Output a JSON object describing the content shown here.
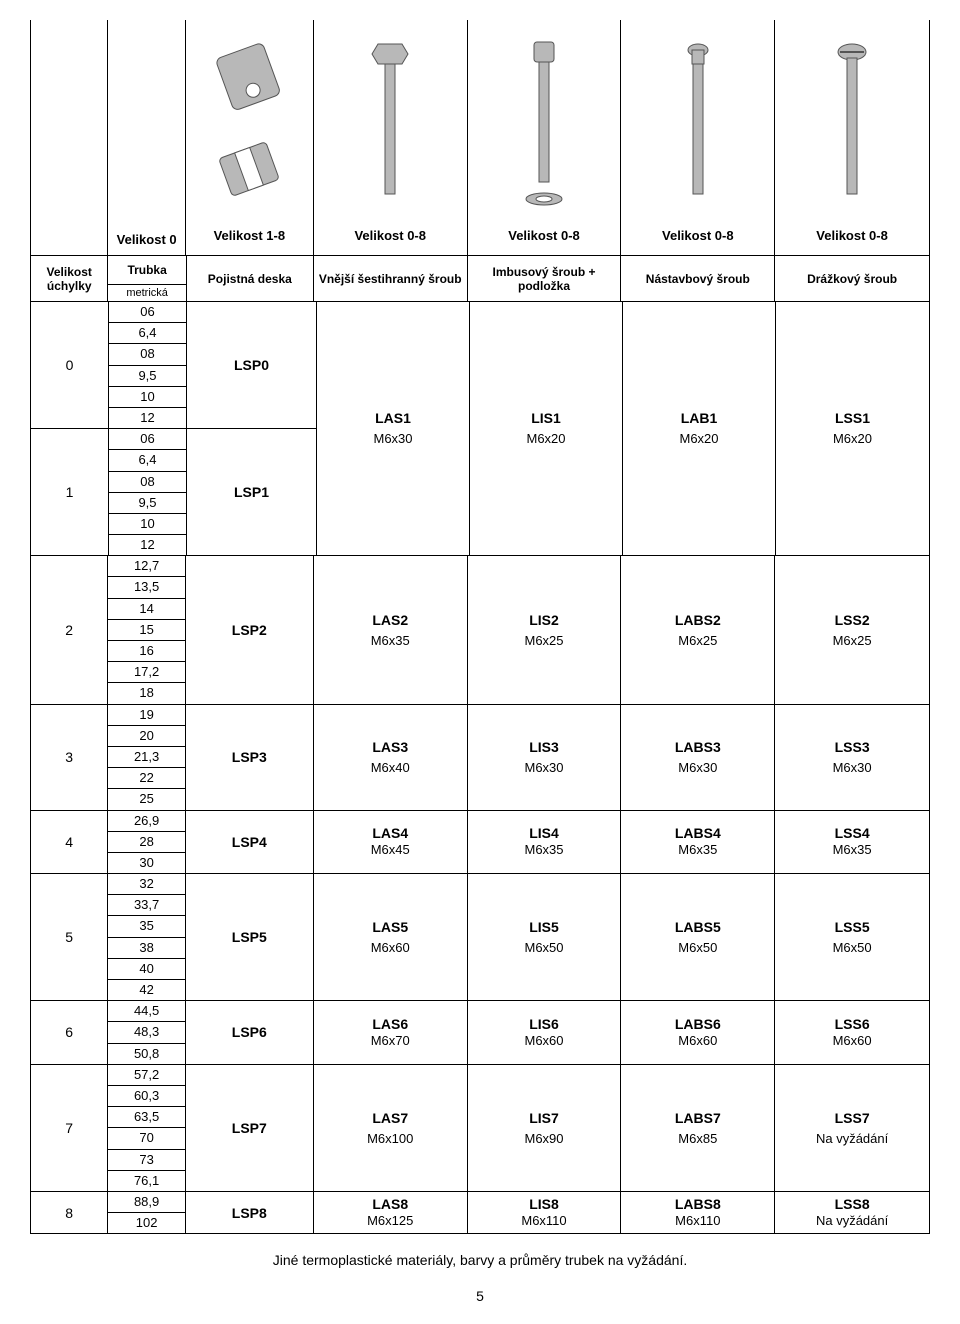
{
  "top_labels": {
    "side": "Velikost 0",
    "cols": [
      "Velikost 1-8",
      "Velikost 0-8",
      "Velikost 0-8",
      "Velikost 0-8",
      "Velikost 0-8"
    ]
  },
  "headers": {
    "uchylky": "Velikost úchylky",
    "trubka": "Trubka",
    "trubka_sub": "metrická",
    "deska": "Pojistná deska",
    "hex": "Vnější šestihranný šroub",
    "imbus": "Imbusový šroub + podložka",
    "stud": "Nástavbový šroub",
    "slot": "Drážkový šroub"
  },
  "groups": [
    {
      "span": true,
      "sub": [
        {
          "size": "0",
          "tubes": [
            "06",
            "6,4",
            "08",
            "9,5",
            "10",
            "12"
          ],
          "plate": "LSP0"
        },
        {
          "size": "1",
          "tubes": [
            "06",
            "6,4",
            "08",
            "9,5",
            "10",
            "12"
          ],
          "plate": "LSP1"
        }
      ],
      "screws": [
        {
          "code": "LAS1",
          "spec": "M6x30"
        },
        {
          "code": "LIS1",
          "spec": "M6x20"
        },
        {
          "code": "LAB1",
          "spec": "M6x20"
        },
        {
          "code": "LSS1",
          "spec": "M6x20"
        }
      ]
    },
    {
      "size": "2",
      "tubes": [
        "12,7",
        "13,5",
        "14",
        "15",
        "16",
        "17,2",
        "18"
      ],
      "plate": "LSP2",
      "screws": [
        {
          "code": "LAS2",
          "spec": "M6x35"
        },
        {
          "code": "LIS2",
          "spec": "M6x25"
        },
        {
          "code": "LABS2",
          "spec": "M6x25"
        },
        {
          "code": "LSS2",
          "spec": "M6x25"
        }
      ]
    },
    {
      "size": "3",
      "tubes": [
        "19",
        "20",
        "21,3",
        "22",
        "25"
      ],
      "plate": "LSP3",
      "screws": [
        {
          "code": "LAS3",
          "spec": "M6x40"
        },
        {
          "code": "LIS3",
          "spec": "M6x30"
        },
        {
          "code": "LABS3",
          "spec": "M6x30"
        },
        {
          "code": "LSS3",
          "spec": "M6x30"
        }
      ]
    },
    {
      "size": "4",
      "tubes": [
        "26,9",
        "28",
        "30"
      ],
      "plate": "LSP4",
      "tight": true,
      "screws": [
        {
          "code": "LAS4",
          "spec": "M6x45"
        },
        {
          "code": "LIS4",
          "spec": "M6x35"
        },
        {
          "code": "LABS4",
          "spec": "M6x35"
        },
        {
          "code": "LSS4",
          "spec": "M6x35"
        }
      ]
    },
    {
      "size": "5",
      "tubes": [
        "32",
        "33,7",
        "35",
        "38",
        "40",
        "42"
      ],
      "plate": "LSP5",
      "screws": [
        {
          "code": "LAS5",
          "spec": "M6x60"
        },
        {
          "code": "LIS5",
          "spec": "M6x50"
        },
        {
          "code": "LABS5",
          "spec": "M6x50"
        },
        {
          "code": "LSS5",
          "spec": "M6x50"
        }
      ]
    },
    {
      "size": "6",
      "tubes": [
        "44,5",
        "48,3",
        "50,8"
      ],
      "plate": "LSP6",
      "tight": true,
      "screws": [
        {
          "code": "LAS6",
          "spec": "M6x70"
        },
        {
          "code": "LIS6",
          "spec": "M6x60"
        },
        {
          "code": "LABS6",
          "spec": "M6x60"
        },
        {
          "code": "LSS6",
          "spec": "M6x60"
        }
      ]
    },
    {
      "size": "7",
      "tubes": [
        "57,2",
        "60,3",
        "63,5",
        "70",
        "73",
        "76,1"
      ],
      "plate": "LSP7",
      "screws": [
        {
          "code": "LAS7",
          "spec": "M6x100"
        },
        {
          "code": "LIS7",
          "spec": "M6x90"
        },
        {
          "code": "LABS7",
          "spec": "M6x85"
        },
        {
          "code": "LSS7",
          "spec": "Na vyžádání"
        }
      ]
    },
    {
      "size": "8",
      "tubes": [
        "88,9",
        "102"
      ],
      "plate": "LSP8",
      "tight": true,
      "screws": [
        {
          "code": "LAS8",
          "spec": "M6x125"
        },
        {
          "code": "LIS8",
          "spec": "M6x110"
        },
        {
          "code": "LABS8",
          "spec": "M6x110"
        },
        {
          "code": "LSS8",
          "spec": "Na vyžádání"
        }
      ]
    }
  ],
  "footer": "Jiné termoplastické materiály, barvy a průměry trubek na vyžádání.",
  "page": "5",
  "svg": {
    "fill": "#b8b8b8",
    "stroke": "#555555"
  }
}
